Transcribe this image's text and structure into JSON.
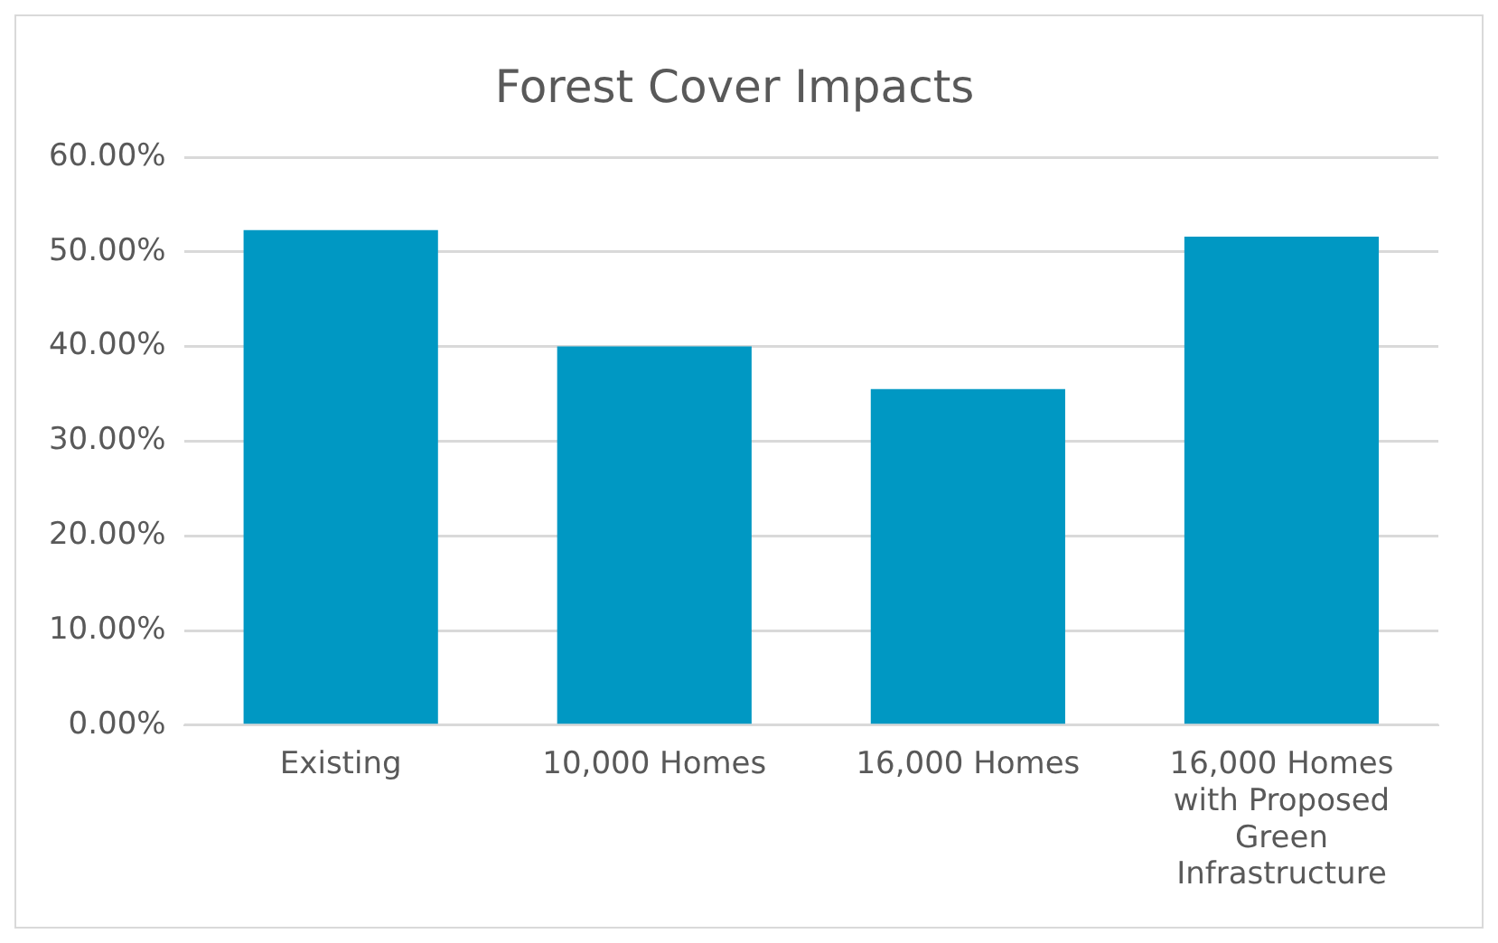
{
  "chart_data": {
    "type": "bar",
    "title": "Forest Cover Impacts",
    "categories": [
      "Existing",
      "10,000 Homes",
      "16,000 Homes",
      "16,000 Homes with Proposed Green Infrastructure"
    ],
    "values": [
      52.3,
      40.0,
      35.5,
      51.6
    ],
    "color": "#0098c3",
    "ylim": [
      0,
      60
    ],
    "yticks": [
      {
        "value": 0,
        "label": "0.00%"
      },
      {
        "value": 10,
        "label": "10.00%"
      },
      {
        "value": 20,
        "label": "20.00%"
      },
      {
        "value": 30,
        "label": "30.00%"
      },
      {
        "value": 40,
        "label": "40.00%"
      },
      {
        "value": 50,
        "label": "50.00%"
      },
      {
        "value": 60,
        "label": "60.00%"
      }
    ],
    "grid": "y",
    "legend": false
  }
}
